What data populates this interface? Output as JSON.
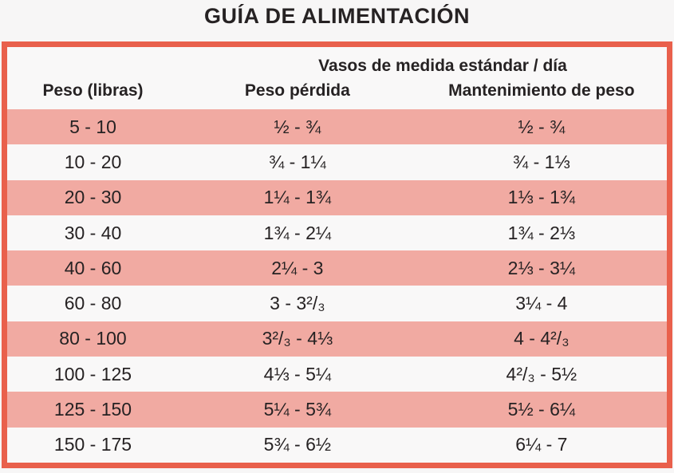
{
  "title": "GUÍA DE ALIMENTACIÓN",
  "table": {
    "units_header": "Vasos de medida estándar / día",
    "columns": [
      "Peso (libras)",
      "Peso pérdida",
      "Mantenimiento de peso"
    ],
    "rows": [
      {
        "peso": "5 - 10",
        "perdida": "½ - ¾",
        "mantenimiento": "½ - ¾"
      },
      {
        "peso": "10 - 20",
        "perdida": "¾ - 1¼",
        "mantenimiento": "¾ - 1⅓"
      },
      {
        "peso": "20 - 30",
        "perdida": "1¼ - 1¾",
        "mantenimiento": "1⅓ - 1¾"
      },
      {
        "peso": "30 - 40",
        "perdida": "1¾ - 2¼",
        "mantenimiento": "1¾ - 2⅓"
      },
      {
        "peso": "40 - 60",
        "perdida": "2¼ - 3",
        "mantenimiento": "2⅓ - 3¼"
      },
      {
        "peso": "60 - 80",
        "perdida": "3 - 3²/₃",
        "mantenimiento": "3¼ - 4"
      },
      {
        "peso": "80 - 100",
        "perdida": "3²/₃ - 4⅓",
        "mantenimiento": "4 - 4²/₃"
      },
      {
        "peso": "100 - 125",
        "perdida": "4⅓ - 5¼",
        "mantenimiento": "4²/₃ - 5½"
      },
      {
        "peso": "125 - 150",
        "perdida": "5¼ - 5¾",
        "mantenimiento": "5½ - 6¼"
      },
      {
        "peso": "150 - 175",
        "perdida": "5¾ - 6½",
        "mantenimiento": "6¼ - 7"
      }
    ],
    "colors": {
      "border": "#e9604c",
      "row_pink": "#f1aaa2",
      "row_white": "#f9f8f8",
      "text": "#262223",
      "page_background": "#f7f6f6"
    }
  }
}
